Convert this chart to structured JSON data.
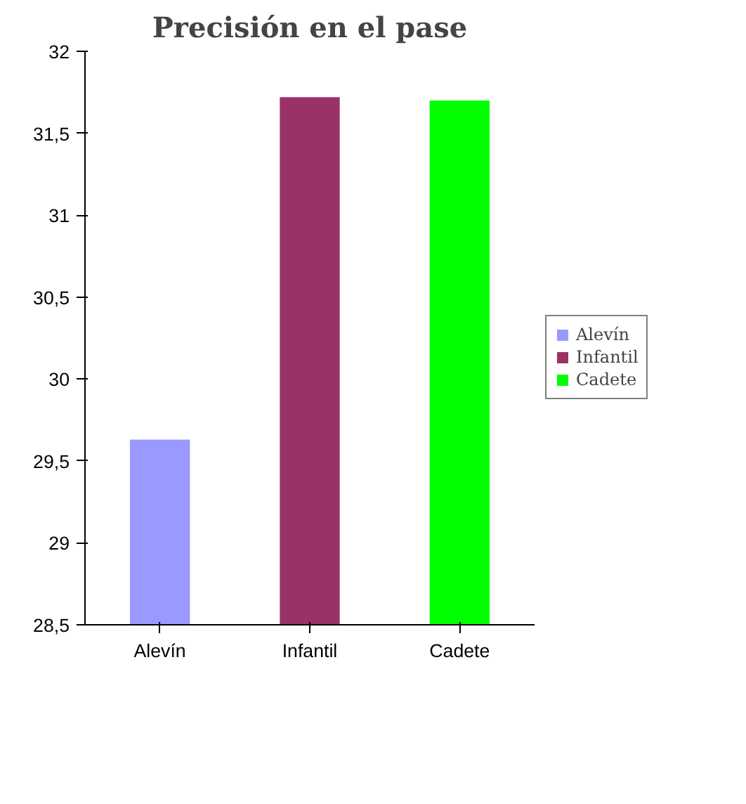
{
  "chart_data": {
    "type": "bar",
    "title": "Precisión en el pase",
    "categories": [
      "Alevín",
      "Infantil",
      "Cadete"
    ],
    "series": [
      {
        "name": "Alevín",
        "color": "#9999ff",
        "values": [
          29.63,
          null,
          null
        ]
      },
      {
        "name": "Infantil",
        "color": "#993366",
        "values": [
          null,
          31.72,
          null
        ]
      },
      {
        "name": "Cadete",
        "color": "#00ff00",
        "values": [
          null,
          null,
          31.7
        ]
      }
    ],
    "ylim": [
      28.5,
      32
    ],
    "yticks": [
      {
        "value": 28.5,
        "label": "28,5"
      },
      {
        "value": 29,
        "label": "29"
      },
      {
        "value": 29.5,
        "label": "29,5"
      },
      {
        "value": 30,
        "label": "30"
      },
      {
        "value": 30.5,
        "label": "30,5"
      },
      {
        "value": 31,
        "label": "31"
      },
      {
        "value": 31.5,
        "label": "31,5"
      },
      {
        "value": 32,
        "label": "32"
      }
    ],
    "grid": false,
    "legend": "right"
  }
}
